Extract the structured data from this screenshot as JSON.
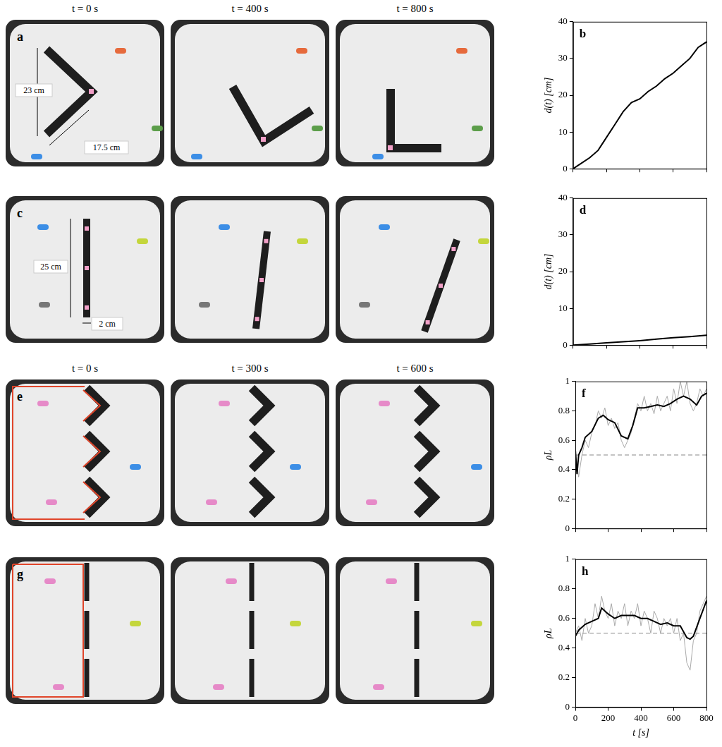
{
  "photo_rows": [
    {
      "times": [
        "t = 0 s",
        "t = 400 s",
        "t = 800 s"
      ],
      "panel": "a",
      "dimensions": [
        "23 cm",
        "17.5 cm"
      ]
    },
    {
      "panel": "c",
      "dimensions": [
        "25 cm",
        "2 cm"
      ]
    },
    {
      "times": [
        "t = 0 s",
        "t = 300 s",
        "t = 600 s"
      ],
      "panel": "e"
    },
    {
      "panel": "g"
    }
  ],
  "chart_data": [
    {
      "type": "line",
      "panel": "b",
      "ylabel": "d(t) [cm]",
      "series": [
        {
          "color": "#000000",
          "x": [
            0,
            50,
            100,
            150,
            200,
            250,
            300,
            350,
            400,
            450,
            500,
            550,
            600,
            650,
            700,
            750,
            800
          ],
          "values": [
            0,
            1.5,
            3,
            5,
            8.5,
            12,
            15.5,
            18,
            19,
            21,
            22.5,
            24.5,
            26,
            28,
            30,
            33,
            34.5
          ]
        }
      ],
      "xlim": [
        0,
        800
      ],
      "xticks": [
        0,
        200,
        400,
        600,
        800
      ],
      "ylim": [
        0,
        40
      ],
      "yticks": [
        0,
        10,
        20,
        30,
        40
      ],
      "grid": false,
      "tick_labels": "y"
    },
    {
      "type": "line",
      "panel": "d",
      "ylabel": "d(t) [cm]",
      "series": [
        {
          "color": "#000000",
          "x": [
            0,
            100,
            200,
            300,
            400,
            500,
            600,
            700,
            800
          ],
          "values": [
            0,
            0.3,
            0.6,
            0.9,
            1.2,
            1.6,
            2,
            2.3,
            2.7
          ]
        }
      ],
      "xlim": [
        0,
        800
      ],
      "xticks": [
        0,
        200,
        400,
        600,
        800
      ],
      "ylim": [
        0,
        40
      ],
      "yticks": [
        0,
        10,
        20,
        30,
        40
      ],
      "grid": false,
      "tick_labels": "y"
    },
    {
      "type": "line",
      "panel": "f",
      "ylabel": "ρL",
      "series": [
        {
          "color": "#aaaaaa",
          "x": [
            0,
            20,
            40,
            60,
            80,
            100,
            120,
            140,
            160,
            180,
            200,
            220,
            240,
            260,
            280,
            300,
            320,
            340,
            360,
            380,
            400,
            420,
            440,
            460,
            480,
            500,
            520,
            540,
            560,
            580,
            600,
            620,
            640,
            660,
            680,
            700,
            720,
            740,
            760,
            780,
            800
          ],
          "values": [
            0.52,
            0.35,
            0.5,
            0.6,
            0.55,
            0.65,
            0.7,
            0.8,
            0.75,
            0.82,
            0.7,
            0.75,
            0.68,
            0.72,
            0.6,
            0.55,
            0.6,
            0.65,
            0.75,
            0.85,
            0.8,
            0.9,
            0.8,
            0.85,
            0.78,
            0.9,
            0.8,
            0.85,
            0.9,
            0.8,
            0.95,
            0.85,
            1,
            0.9,
            1,
            0.85,
            0.8,
            0.85,
            0.95,
            0.9,
            0.95
          ]
        },
        {
          "color": "#888888",
          "line_style": "dashed",
          "x": [
            0,
            800
          ],
          "values": [
            0.5,
            0.5
          ]
        },
        {
          "color": "#000000",
          "x": [
            0,
            10,
            20,
            40,
            60,
            100,
            140,
            170,
            200,
            240,
            280,
            320,
            350,
            380,
            420,
            460,
            500,
            540,
            580,
            620,
            660,
            700,
            740,
            770,
            800
          ],
          "values": [
            0.53,
            0.37,
            0.5,
            0.55,
            0.62,
            0.66,
            0.75,
            0.77,
            0.74,
            0.72,
            0.63,
            0.61,
            0.7,
            0.82,
            0.82,
            0.83,
            0.84,
            0.83,
            0.85,
            0.88,
            0.9,
            0.88,
            0.84,
            0.9,
            0.92
          ]
        }
      ],
      "xlim": [
        0,
        800
      ],
      "xticks": [
        0,
        200,
        400,
        600,
        800
      ],
      "ylim": [
        0,
        1
      ],
      "yticks": [
        0,
        0.2,
        0.4,
        0.6,
        0.8,
        1
      ],
      "grid": false,
      "tick_labels": "y"
    },
    {
      "type": "line",
      "panel": "h",
      "ylabel": "ρL",
      "xlabel": "t [s]",
      "series": [
        {
          "color": "#aaaaaa",
          "x": [
            0,
            20,
            40,
            60,
            80,
            100,
            120,
            140,
            160,
            180,
            200,
            220,
            240,
            260,
            280,
            300,
            320,
            340,
            360,
            380,
            400,
            420,
            440,
            460,
            480,
            500,
            520,
            540,
            560,
            580,
            600,
            620,
            640,
            660,
            680,
            700,
            720,
            740,
            760,
            780,
            800
          ],
          "values": [
            0.5,
            0.55,
            0.45,
            0.6,
            0.5,
            0.55,
            0.7,
            0.6,
            0.75,
            0.65,
            0.6,
            0.7,
            0.55,
            0.65,
            0.6,
            0.7,
            0.55,
            0.65,
            0.6,
            0.7,
            0.55,
            0.65,
            0.6,
            0.5,
            0.65,
            0.6,
            0.5,
            0.6,
            0.55,
            0.6,
            0.5,
            0.6,
            0.45,
            0.5,
            0.3,
            0.25,
            0.45,
            0.5,
            0.65,
            0.7,
            0.75
          ]
        },
        {
          "color": "#888888",
          "line_style": "dashed",
          "x": [
            0,
            800
          ],
          "values": [
            0.5,
            0.5
          ]
        },
        {
          "color": "#000000",
          "x": [
            0,
            20,
            60,
            100,
            140,
            160,
            200,
            240,
            280,
            320,
            360,
            400,
            440,
            480,
            520,
            560,
            600,
            640,
            680,
            700,
            720,
            760,
            800
          ],
          "values": [
            0.48,
            0.52,
            0.56,
            0.58,
            0.6,
            0.67,
            0.63,
            0.6,
            0.62,
            0.62,
            0.62,
            0.6,
            0.6,
            0.58,
            0.56,
            0.57,
            0.55,
            0.55,
            0.47,
            0.46,
            0.48,
            0.6,
            0.72
          ]
        }
      ],
      "xlim": [
        0,
        800
      ],
      "xticks": [
        0,
        200,
        400,
        600,
        800
      ],
      "ylim": [
        0,
        1
      ],
      "yticks": [
        0,
        0.2,
        0.4,
        0.6,
        0.8,
        1
      ],
      "grid": false,
      "tick_labels": true
    }
  ]
}
